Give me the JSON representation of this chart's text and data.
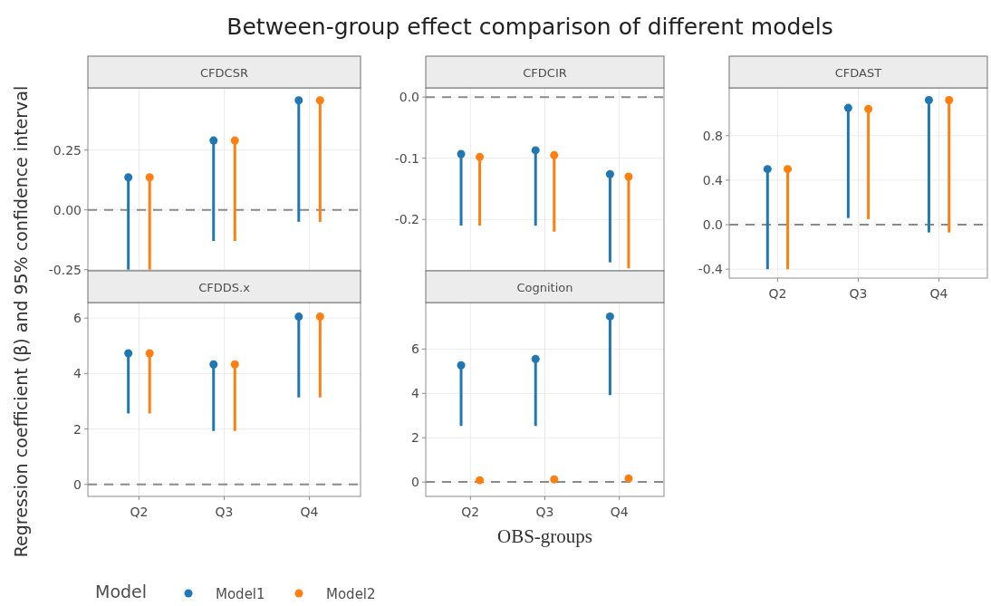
{
  "chart_data": [
    {
      "type": "scatter",
      "title": "Between-group effect comparison of different models",
      "subtitle": "CFDCSR",
      "ylabel": "Regression coefficient (β) and 95% confidence interval",
      "legend": "bottom",
      "legend_title": "Model",
      "categories": [
        null,
        null,
        null
      ],
      "ylim": [
        -0.255,
        0.51
      ],
      "yticks": [
        {
          "value": -0.25,
          "label": "-0.25"
        },
        {
          "value": 0,
          "label": "0.00"
        },
        0.25
      ],
      "grid": true,
      "marker": "circle",
      "tick_labels": "y",
      "ref_lines": [
        {
          "axis": "y",
          "value": 0,
          "label": null,
          "line_style": "dashed"
        }
      ],
      "series": [
        {
          "name": "Model1",
          "color": "#1f77b4",
          "values": [
            0.136,
            0.29,
            0.458
          ],
          "errors": [
            [
              -0.25,
              0.136
            ],
            [
              -0.13,
              0.29
            ],
            [
              -0.05,
              0.458
            ]
          ]
        },
        {
          "name": "Model2",
          "color": "#ff7f0e",
          "values": [
            0.136,
            0.29,
            0.458
          ],
          "errors": [
            [
              -0.25,
              0.136
            ],
            [
              -0.13,
              0.29
            ],
            [
              -0.05,
              0.458
            ]
          ]
        }
      ]
    },
    {
      "type": "scatter",
      "subtitle": "CFDCIR",
      "categories": [
        null,
        null,
        null
      ],
      "ylim": [
        -0.284,
        0.015
      ],
      "yticks": [
        {
          "value": -0.2,
          "label": "-0.2"
        },
        {
          "value": -0.1,
          "label": "-0.1"
        },
        {
          "value": 0,
          "label": "0.0"
        }
      ],
      "grid": true,
      "marker": "circle",
      "tick_labels": "y",
      "ref_lines": [
        {
          "axis": "y",
          "value": 0,
          "label": null,
          "line_style": "dashed"
        }
      ],
      "series": [
        {
          "color": "#1f77b4",
          "values": [
            -0.093,
            -0.087,
            -0.126
          ],
          "errors": [
            [
              -0.21,
              -0.093
            ],
            [
              -0.21,
              -0.087
            ],
            [
              -0.27,
              -0.126
            ]
          ]
        },
        {
          "color": "#ff7f0e",
          "values": [
            -0.098,
            -0.095,
            -0.13
          ],
          "errors": [
            [
              -0.21,
              -0.098
            ],
            [
              -0.22,
              -0.095
            ],
            [
              -0.28,
              -0.13
            ]
          ]
        }
      ]
    },
    {
      "type": "scatter",
      "subtitle": "CFDAST",
      "categories": [
        "Q2",
        "Q3",
        "Q4"
      ],
      "ylim": [
        -0.48,
        1.23
      ],
      "yticks": [
        {
          "value": -0.4,
          "label": "-0.4"
        },
        {
          "value": 0,
          "label": "0.0"
        },
        0.4,
        0.8
      ],
      "grid": true,
      "marker": "circle",
      "ref_lines": [
        {
          "axis": "y",
          "value": 0,
          "label": null,
          "line_style": "dashed"
        }
      ],
      "series": [
        {
          "color": "#1f77b4",
          "values": [
            0.5,
            1.05,
            1.12
          ],
          "errors": [
            [
              -0.4,
              0.5
            ],
            [
              0.06,
              1.05
            ],
            [
              -0.07,
              1.12
            ]
          ]
        },
        {
          "color": "#ff7f0e",
          "values": [
            0.5,
            1.04,
            1.12
          ],
          "errors": [
            [
              -0.4,
              0.5
            ],
            [
              0.05,
              1.04
            ],
            [
              -0.07,
              1.12
            ]
          ]
        }
      ]
    },
    {
      "type": "scatter",
      "subtitle": "CFDDS.x",
      "categories": [
        "Q2",
        "Q3",
        "Q4"
      ],
      "ylim": [
        -0.43,
        6.56
      ],
      "yticks": [
        0,
        2,
        4,
        6
      ],
      "grid": true,
      "marker": "circle",
      "ref_lines": [
        {
          "axis": "y",
          "value": 0,
          "label": null,
          "line_style": "dashed"
        }
      ],
      "series": [
        {
          "color": "#1f77b4",
          "values": [
            4.73,
            4.33,
            6.05
          ],
          "errors": [
            [
              2.56,
              4.73
            ],
            [
              1.93,
              4.33
            ],
            [
              3.14,
              6.05
            ]
          ]
        },
        {
          "color": "#ff7f0e",
          "values": [
            4.73,
            4.33,
            6.05
          ],
          "errors": [
            [
              2.56,
              4.73
            ],
            [
              1.93,
              4.33
            ],
            [
              3.14,
              6.05
            ]
          ]
        }
      ]
    },
    {
      "type": "scatter",
      "subtitle": "Cognition",
      "xlabel": "OBS-groups",
      "categories": [
        "Q2",
        "Q3",
        "Q4"
      ],
      "ylim": [
        -0.65,
        8.1
      ],
      "yticks": [
        0,
        2,
        4,
        6
      ],
      "grid": true,
      "marker": "circle",
      "ref_lines": [
        {
          "axis": "y",
          "value": 0,
          "label": null,
          "line_style": "dashed"
        }
      ],
      "series": [
        {
          "color": "#1f77b4",
          "values": [
            5.27,
            5.55,
            7.47
          ],
          "errors": [
            [
              2.53,
              5.27
            ],
            [
              2.53,
              5.55
            ],
            [
              3.92,
              7.47
            ]
          ]
        },
        {
          "color": "#ff7f0e",
          "values": [
            0.08,
            0.12,
            0.16
          ],
          "errors": [
            null,
            null,
            null
          ]
        }
      ]
    }
  ]
}
